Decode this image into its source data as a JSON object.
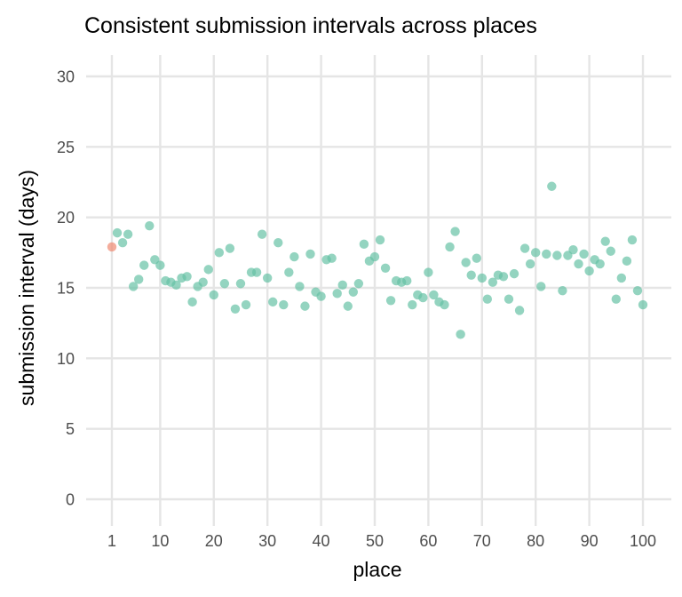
{
  "chart_data": {
    "type": "scatter",
    "title": "Consistent submission intervals across places",
    "xlabel": "place",
    "ylabel": "submission interval (days)",
    "xlim": [
      1,
      100
    ],
    "ylim": [
      0,
      30
    ],
    "x_ticks": [
      1,
      10,
      20,
      30,
      40,
      50,
      60,
      70,
      80,
      90,
      100
    ],
    "y_ticks": [
      0,
      5,
      10,
      15,
      20,
      25,
      30
    ],
    "grid": true,
    "legend": "none",
    "colors": {
      "highlight": "#f08a72",
      "default": "#66c2a5"
    },
    "series": [
      {
        "x": [
          1
        ],
        "y": [
          17.9
        ],
        "color": "#f08a72"
      },
      {
        "x": [
          2,
          3,
          4,
          5,
          6,
          7,
          8,
          9,
          10,
          11,
          12,
          13,
          14,
          15,
          16,
          17,
          18,
          19,
          20,
          21,
          22,
          23,
          24,
          25,
          26,
          27,
          28,
          29,
          30,
          31,
          32,
          33,
          34,
          35,
          36,
          37,
          38,
          39,
          40,
          41,
          42,
          43,
          44,
          45,
          46,
          47,
          48,
          49,
          50,
          51,
          52,
          53,
          54,
          55,
          56,
          57,
          58,
          59,
          60,
          61,
          62,
          63,
          64,
          65,
          66,
          67,
          68,
          69,
          70,
          71,
          72,
          73,
          74,
          75,
          76,
          77,
          78,
          79,
          80,
          81,
          82,
          83,
          84,
          85,
          86,
          87,
          88,
          89,
          90,
          91,
          92,
          93,
          94,
          95,
          96,
          97,
          98,
          99,
          100
        ],
        "y": [
          18.9,
          18.2,
          18.8,
          15.1,
          15.6,
          16.6,
          19.4,
          17.0,
          16.6,
          15.5,
          15.4,
          15.2,
          15.7,
          15.8,
          14.0,
          15.1,
          15.4,
          16.3,
          14.5,
          17.5,
          15.3,
          17.8,
          13.5,
          15.3,
          13.8,
          16.1,
          16.1,
          18.8,
          15.7,
          14.0,
          18.2,
          13.8,
          16.1,
          17.2,
          15.1,
          13.7,
          17.4,
          14.7,
          14.4,
          17.0,
          17.1,
          14.6,
          15.2,
          13.7,
          14.7,
          15.3,
          18.1,
          16.9,
          17.2,
          18.4,
          16.4,
          14.1,
          15.5,
          15.4,
          15.5,
          13.8,
          14.5,
          14.3,
          16.1,
          14.5,
          14.0,
          13.8,
          17.9,
          19.0,
          11.7,
          16.8,
          15.9,
          17.1,
          15.7,
          14.2,
          15.4,
          15.9,
          15.8,
          14.2,
          16.0,
          13.4,
          17.8,
          16.7,
          17.5,
          15.1,
          17.4,
          22.2,
          17.3,
          14.8,
          17.3,
          17.7,
          16.7,
          17.4,
          16.2,
          17.0,
          16.7,
          18.3,
          17.6,
          14.2,
          15.7,
          16.9,
          18.4,
          14.8,
          13.8
        ],
        "color": "#66c2a5"
      }
    ]
  }
}
